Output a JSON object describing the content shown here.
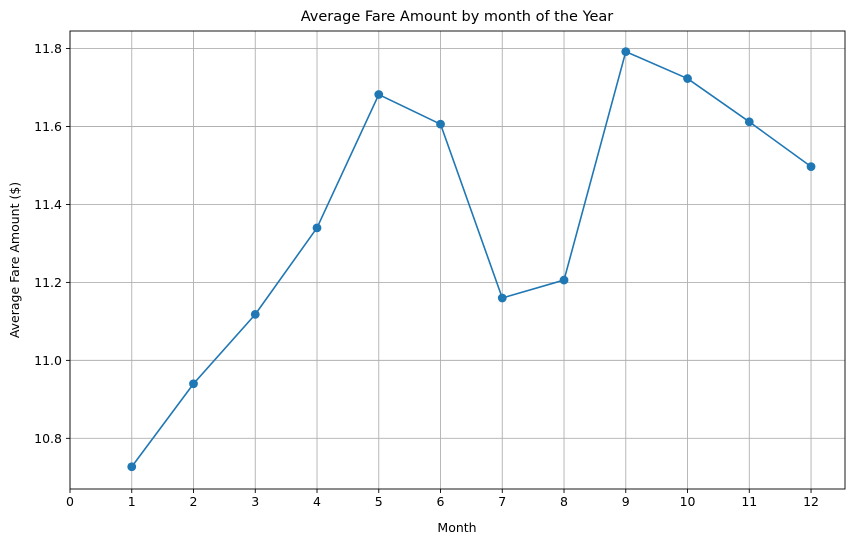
{
  "chart_data": {
    "type": "line",
    "title": "Average Fare Amount by month of the Year",
    "xlabel": "Month",
    "ylabel": "Average Fare Amount ($)",
    "x": [
      1,
      2,
      3,
      4,
      5,
      6,
      7,
      8,
      9,
      10,
      11,
      12
    ],
    "series": [
      {
        "values": [
          10.727,
          10.94,
          11.118,
          11.34,
          11.682,
          11.606,
          11.16,
          11.206,
          11.792,
          11.723,
          11.612,
          11.497
        ],
        "color": "#1f77b4",
        "marker": "circle"
      }
    ],
    "xlim": [
      0,
      12.55
    ],
    "ylim": [
      10.67,
      11.845
    ],
    "xticks": [
      0,
      1,
      2,
      3,
      4,
      5,
      6,
      7,
      8,
      9,
      10,
      11,
      12
    ],
    "yticks": [
      10.8,
      11.0,
      11.2,
      11.4,
      11.6,
      11.8
    ],
    "ytick_labels": [
      "10.8",
      "11.0",
      "11.2",
      "11.4",
      "11.6",
      "11.8"
    ],
    "grid": true,
    "legend": "none"
  }
}
